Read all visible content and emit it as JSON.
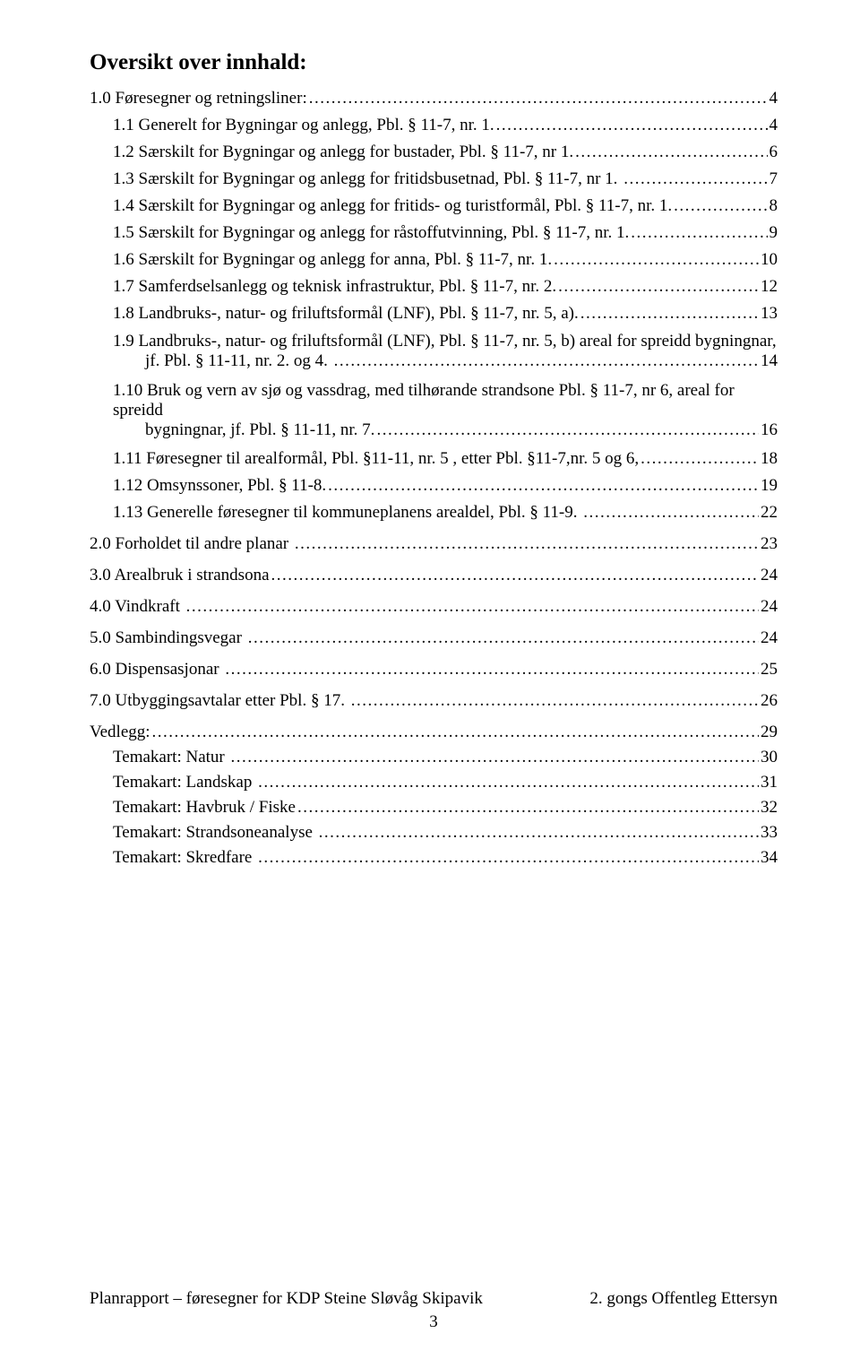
{
  "title": "Oversikt over innhald:",
  "toc": [
    {
      "level": 1,
      "label": "1.0 Føresegner og retningsliner:",
      "page": "4"
    },
    {
      "level": 2,
      "label": "1.1 Generelt for Bygningar og anlegg, Pbl. § 11-7, nr. 1.",
      "page": "4"
    },
    {
      "level": 2,
      "label": "1.2 Særskilt for Bygningar og anlegg for bustader, Pbl. § 11-7, nr 1.",
      "page": "6"
    },
    {
      "level": 2,
      "label": "1.3 Særskilt for Bygningar og anlegg for fritidsbusetnad, Pbl. § 11-7, nr 1. ",
      "page": "7"
    },
    {
      "level": 2,
      "label": "1.4 Særskilt for Bygningar og anlegg for fritids- og turistformål, Pbl. § 11-7, nr. 1.",
      "page": "8"
    },
    {
      "level": 2,
      "label": "1.5 Særskilt for Bygningar og anlegg for råstoffutvinning, Pbl. § 11-7, nr. 1.",
      "page": "9"
    },
    {
      "level": 2,
      "label": "1.6 Særskilt for Bygningar og anlegg for anna, Pbl. § 11-7, nr. 1.",
      "page": "10"
    },
    {
      "level": 2,
      "label": "1.7 Samferdselsanlegg og teknisk infrastruktur, Pbl. § 11-7, nr. 2.",
      "page": "12"
    },
    {
      "level": 2,
      "label": "1.8 Landbruks-, natur- og friluftsformål (LNF), Pbl. § 11-7, nr. 5, a).",
      "page": "13"
    },
    {
      "level": 2,
      "multiline": true,
      "line1": "1.9 Landbruks-, natur- og friluftsformål (LNF), Pbl. § 11-7, nr. 5, b)  areal for spreidd bygningnar,",
      "line2label": "jf. Pbl. § 11-11, nr. 2. og 4. ",
      "page": "14"
    },
    {
      "level": 2,
      "multiline": true,
      "line1": "1.10 Bruk og vern av sjø og vassdrag, med tilhørande strandsone Pbl. § 11-7, nr 6,  areal for spreidd",
      "line2label": "bygningnar, jf. Pbl. § 11-11, nr. 7.",
      "page": "16"
    },
    {
      "level": 2,
      "label": "1.11 Føresegner til arealformål, Pbl. §11-11, nr. 5 , etter Pbl. §11-7,nr. 5 og 6,",
      "page": "18"
    },
    {
      "level": 2,
      "label": "1.12 Omsynssoner, Pbl. § 11-8.",
      "page": "19"
    },
    {
      "level": 2,
      "label": "1.13 Generelle føresegner til kommuneplanens arealdel, Pbl. § 11-9. ",
      "page": "22"
    },
    {
      "level": 1,
      "label": "2.0 Forholdet til andre planar ",
      "page": "23"
    },
    {
      "level": 1,
      "label": "3.0 Arealbruk i strandsona",
      "page": "24"
    },
    {
      "level": 1,
      "label": "4.0 Vindkraft ",
      "page": "24"
    },
    {
      "level": 1,
      "label": "5.0 Sambindingsvegar ",
      "page": "24"
    },
    {
      "level": 1,
      "label": "6.0 Dispensasjonar ",
      "page": "25"
    },
    {
      "level": 1,
      "label": "7.0 Utbyggingsavtalar etter Pbl. § 17. ",
      "page": "26"
    },
    {
      "level": 1,
      "label": "Vedlegg:",
      "page": "29"
    },
    {
      "level": 2,
      "tight": true,
      "label": "Temakart: Natur ",
      "page": "30"
    },
    {
      "level": 2,
      "tight": true,
      "label": "Temakart: Landskap ",
      "page": "31"
    },
    {
      "level": 2,
      "tight": true,
      "label": "Temakart: Havbruk / Fiske",
      "page": "32"
    },
    {
      "level": 2,
      "tight": true,
      "label": "Temakart: Strandsoneanalyse ",
      "page": "33"
    },
    {
      "level": 2,
      "tight": true,
      "label": "Temakart: Skredfare ",
      "page": "34"
    }
  ],
  "footer": {
    "left": "Planrapport – føresegner for KDP Steine Sløvåg Skipavik",
    "right": "2. gongs Offentleg Ettersyn",
    "pagenum": "3"
  },
  "leader_dots": "...................................................................................................................................................................................................................................................."
}
